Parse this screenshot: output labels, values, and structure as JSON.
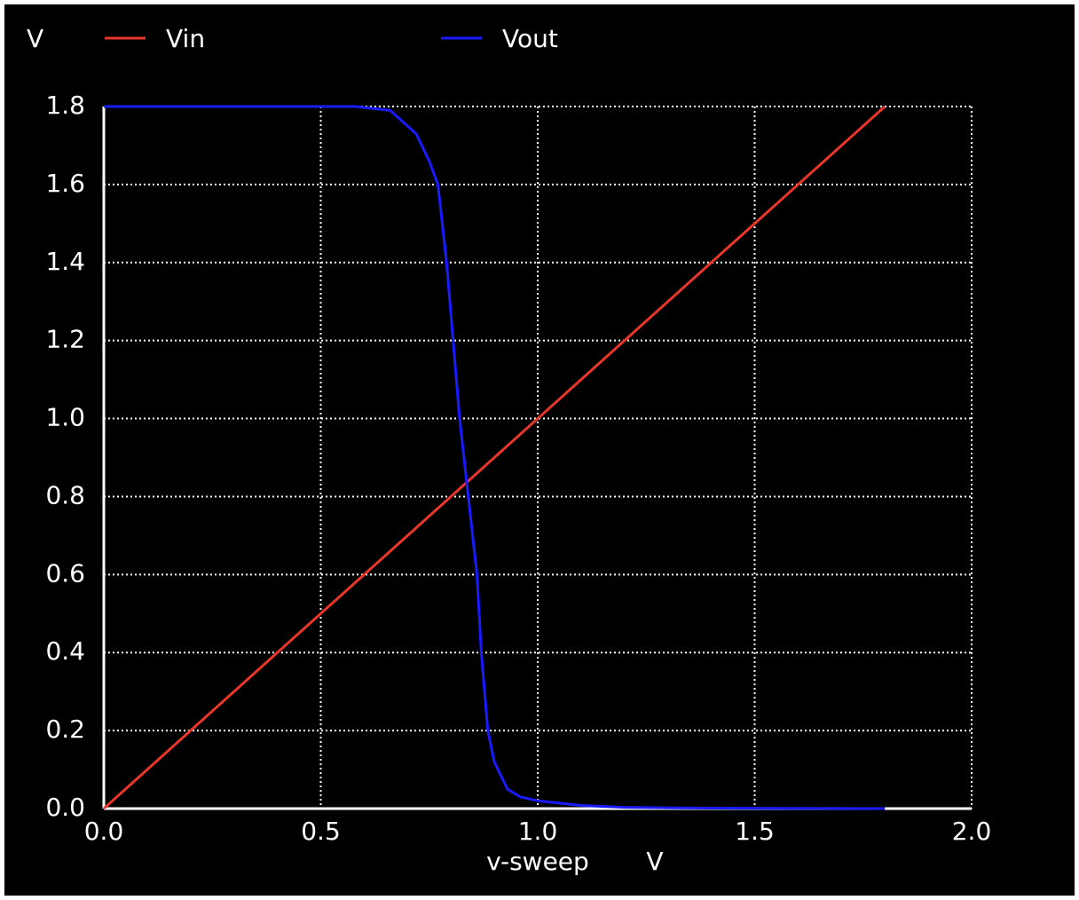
{
  "chart_data": {
    "type": "line",
    "y_axis_label": "V",
    "x_axis_label": "v-sweep",
    "x_axis_unit": "V",
    "xlim": [
      0,
      2
    ],
    "ylim": [
      0,
      1.8
    ],
    "xticks": [
      {
        "value": 0,
        "label": "0.0"
      },
      0.5,
      {
        "value": 1,
        "label": "1.0"
      },
      1.5,
      {
        "value": 2,
        "label": "2.0"
      }
    ],
    "yticks": [
      {
        "value": 0,
        "label": "0.0"
      },
      0.2,
      0.4,
      0.6,
      0.8,
      {
        "value": 1,
        "label": "1.0"
      },
      1.2,
      1.4,
      1.6,
      1.8
    ],
    "grid": true,
    "x": [
      0,
      0.5,
      0.58,
      0.66,
      0.72,
      0.75,
      0.77,
      0.79,
      0.82,
      0.84,
      0.86,
      0.87,
      0.885,
      0.9,
      0.93,
      0.96,
      1.0,
      1.1,
      1.2,
      1.4,
      1.8
    ],
    "series": [
      {
        "name": "Vin",
        "color": "#e8362a",
        "values": [
          0,
          0.5,
          0.58,
          0.66,
          0.72,
          0.75,
          0.77,
          0.79,
          0.82,
          0.84,
          0.86,
          0.87,
          0.885,
          0.9,
          0.93,
          0.96,
          1.0,
          1.1,
          1.2,
          1.4,
          1.8
        ]
      },
      {
        "name": "Vout",
        "color": "#1a1aff",
        "values": [
          1.8,
          1.8,
          1.8,
          1.79,
          1.73,
          1.66,
          1.6,
          1.4,
          1.0,
          0.8,
          0.6,
          0.4,
          0.2,
          0.12,
          0.05,
          0.03,
          0.02,
          0.008,
          0.003,
          0.001,
          0
        ]
      }
    ]
  }
}
